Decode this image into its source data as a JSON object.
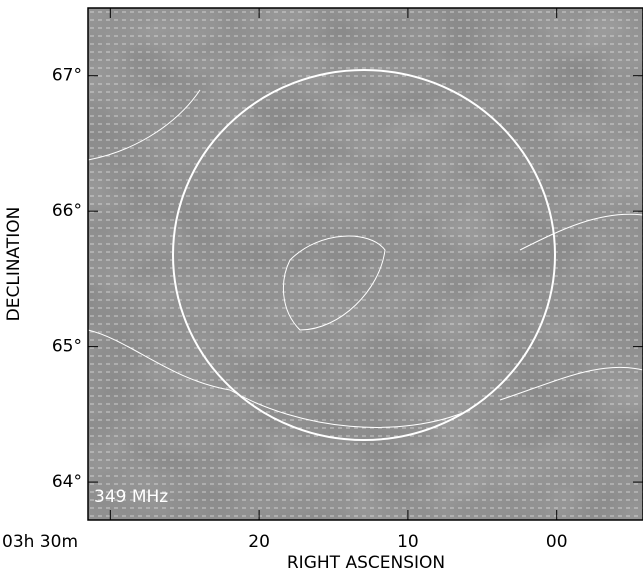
{
  "chart_data": {
    "type": "image-map",
    "annotation": "349 MHz",
    "xlabel": "RIGHT ASCENSION",
    "ylabel": "DECLINATION",
    "xlim": [
      31.5,
      -5.8
    ],
    "xticks": [
      {
        "value": 30,
        "label": "03h 30m"
      },
      {
        "value": 20,
        "label": "20"
      },
      {
        "value": 10,
        "label": "10"
      },
      {
        "value": 0,
        "label": "00"
      }
    ],
    "ylim": [
      63.72,
      67.5
    ],
    "yticks": [
      {
        "value": 64,
        "label": "64°"
      },
      {
        "value": 65,
        "label": "65°"
      },
      {
        "value": 66,
        "label": "66°"
      },
      {
        "value": 67,
        "label": "67°"
      }
    ]
  }
}
